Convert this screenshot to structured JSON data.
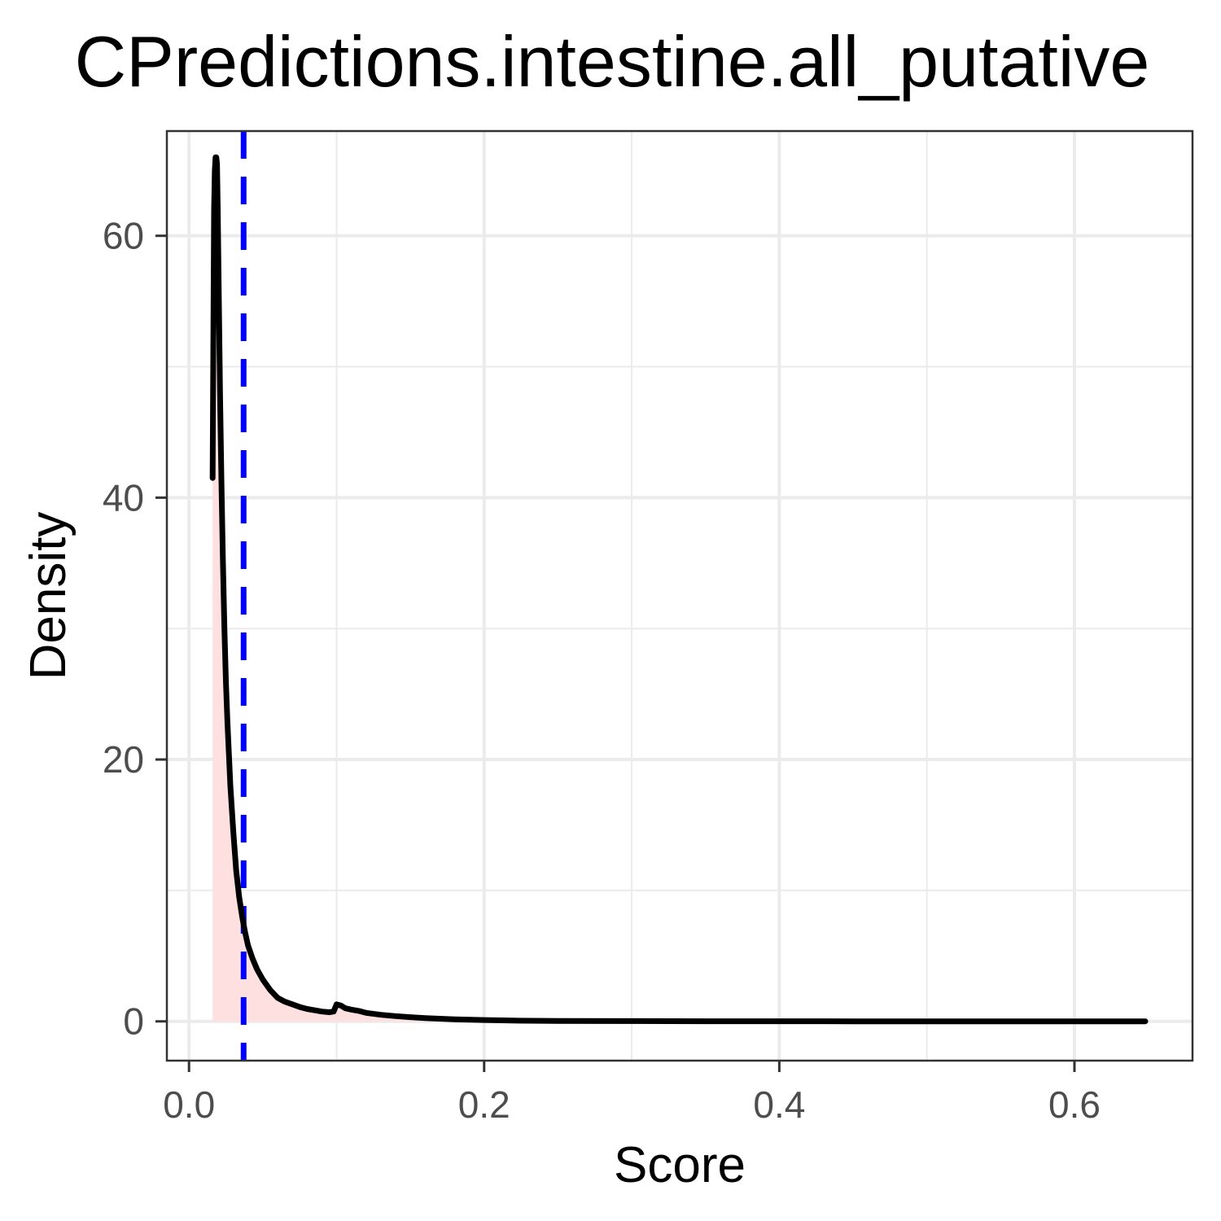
{
  "chart_data": {
    "type": "area",
    "title": "CPredictions.intestine.all_putative",
    "xlabel": "Score",
    "ylabel": "Density",
    "xlim": [
      -0.015,
      0.68
    ],
    "ylim": [
      -3,
      68
    ],
    "x_ticks": [
      0.0,
      0.2,
      0.4,
      0.6
    ],
    "x_tick_labels": [
      "0.0",
      "0.2",
      "0.4",
      "0.6"
    ],
    "y_ticks": [
      0,
      20,
      40,
      60
    ],
    "y_tick_labels": [
      "0",
      "20",
      "40",
      "60"
    ],
    "grid": true,
    "threshold_x": 0.037,
    "colors": {
      "line": "#000000",
      "fill": "#ffe0e0",
      "threshold": "#0000ff",
      "grid": "#ebebeb",
      "panel_border": "#333333"
    },
    "series": [
      {
        "x": [
          0.016,
          0.0165,
          0.017,
          0.0175,
          0.018,
          0.0185,
          0.019,
          0.0195,
          0.02,
          0.021,
          0.022,
          0.023,
          0.024,
          0.025,
          0.026,
          0.028,
          0.03,
          0.032,
          0.034,
          0.036,
          0.038,
          0.04,
          0.043,
          0.046,
          0.05,
          0.055,
          0.06,
          0.065,
          0.07,
          0.075,
          0.08,
          0.085,
          0.09,
          0.095,
          0.098,
          0.1,
          0.103,
          0.106,
          0.11,
          0.115,
          0.12,
          0.13,
          0.14,
          0.15,
          0.16,
          0.17,
          0.18,
          0.2,
          0.22,
          0.25,
          0.3,
          0.35,
          0.4,
          0.45,
          0.5,
          0.55,
          0.6,
          0.648
        ],
        "y": [
          41.5,
          52,
          62,
          65,
          66,
          66,
          65.5,
          62,
          57,
          48,
          41,
          35,
          30,
          26,
          23,
          18,
          14.5,
          11.5,
          9.5,
          8,
          6.8,
          5.8,
          4.8,
          4.0,
          3.2,
          2.4,
          1.8,
          1.5,
          1.3,
          1.1,
          0.95,
          0.85,
          0.75,
          0.7,
          0.75,
          1.3,
          1.2,
          1.0,
          0.9,
          0.8,
          0.65,
          0.5,
          0.4,
          0.32,
          0.25,
          0.2,
          0.16,
          0.1,
          0.06,
          0.03,
          0.02,
          0.01,
          0.01,
          0.005,
          0.005,
          0.003,
          0.002,
          0.001
        ]
      }
    ]
  }
}
